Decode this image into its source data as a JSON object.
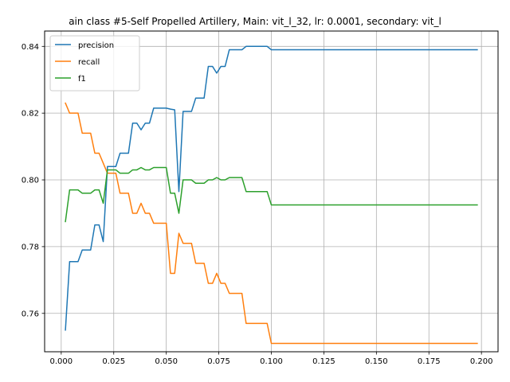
{
  "chart_data": {
    "type": "line",
    "title": "ain class #5-Self Propelled Artillery, Main: vit_l_32, lr: 0.0001, secondary: vit_l",
    "xlabel": "",
    "ylabel": "",
    "xlim": [
      -0.0079,
      0.2079
    ],
    "ylim": [
      0.7485,
      0.8446
    ],
    "grid": true,
    "legend_position": "top-left",
    "xticks": [
      0.0,
      0.025,
      0.05,
      0.075,
      0.1,
      0.125,
      0.15,
      0.175,
      0.2
    ],
    "xtick_labels": [
      "0.000",
      "0.025",
      "0.050",
      "0.075",
      "0.100",
      "0.125",
      "0.150",
      "0.175",
      "0.200"
    ],
    "yticks": [
      0.76,
      0.78,
      0.8,
      0.82,
      0.84
    ],
    "ytick_labels": [
      "0.76",
      "0.78",
      "0.80",
      "0.82",
      "0.84"
    ],
    "series": [
      {
        "name": "precision",
        "color": "#1f77b4",
        "points": [
          [
            0.002,
            0.755
          ],
          [
            0.004,
            0.7755
          ],
          [
            0.006,
            0.7755
          ],
          [
            0.008,
            0.7755
          ],
          [
            0.01,
            0.779
          ],
          [
            0.012,
            0.779
          ],
          [
            0.014,
            0.779
          ],
          [
            0.016,
            0.7865
          ],
          [
            0.018,
            0.7865
          ],
          [
            0.02,
            0.7815
          ],
          [
            0.022,
            0.804
          ],
          [
            0.024,
            0.804
          ],
          [
            0.026,
            0.804
          ],
          [
            0.028,
            0.808
          ],
          [
            0.03,
            0.808
          ],
          [
            0.032,
            0.808
          ],
          [
            0.034,
            0.817
          ],
          [
            0.036,
            0.817
          ],
          [
            0.038,
            0.815
          ],
          [
            0.04,
            0.817
          ],
          [
            0.042,
            0.817
          ],
          [
            0.044,
            0.8215
          ],
          [
            0.046,
            0.8215
          ],
          [
            0.048,
            0.8215
          ],
          [
            0.05,
            0.8215
          ],
          [
            0.052,
            0.8212
          ],
          [
            0.054,
            0.821
          ],
          [
            0.056,
            0.7965
          ],
          [
            0.058,
            0.8205
          ],
          [
            0.06,
            0.8205
          ],
          [
            0.062,
            0.8205
          ],
          [
            0.064,
            0.8245
          ],
          [
            0.066,
            0.8245
          ],
          [
            0.068,
            0.8245
          ],
          [
            0.07,
            0.834
          ],
          [
            0.072,
            0.834
          ],
          [
            0.074,
            0.832
          ],
          [
            0.076,
            0.834
          ],
          [
            0.078,
            0.834
          ],
          [
            0.08,
            0.839
          ],
          [
            0.082,
            0.839
          ],
          [
            0.084,
            0.839
          ],
          [
            0.086,
            0.839
          ],
          [
            0.088,
            0.84
          ],
          [
            0.09,
            0.84
          ],
          [
            0.092,
            0.84
          ],
          [
            0.094,
            0.84
          ],
          [
            0.096,
            0.84
          ],
          [
            0.098,
            0.84
          ],
          [
            0.1,
            0.839
          ],
          [
            0.198,
            0.839
          ]
        ]
      },
      {
        "name": "recall",
        "color": "#ff7f0e",
        "points": [
          [
            0.002,
            0.823
          ],
          [
            0.004,
            0.82
          ],
          [
            0.006,
            0.82
          ],
          [
            0.008,
            0.82
          ],
          [
            0.01,
            0.814
          ],
          [
            0.012,
            0.814
          ],
          [
            0.014,
            0.814
          ],
          [
            0.016,
            0.808
          ],
          [
            0.018,
            0.808
          ],
          [
            0.02,
            0.805
          ],
          [
            0.022,
            0.802
          ],
          [
            0.024,
            0.802
          ],
          [
            0.026,
            0.802
          ],
          [
            0.028,
            0.796
          ],
          [
            0.03,
            0.796
          ],
          [
            0.032,
            0.796
          ],
          [
            0.034,
            0.79
          ],
          [
            0.036,
            0.79
          ],
          [
            0.038,
            0.793
          ],
          [
            0.04,
            0.79
          ],
          [
            0.042,
            0.79
          ],
          [
            0.044,
            0.787
          ],
          [
            0.046,
            0.787
          ],
          [
            0.048,
            0.787
          ],
          [
            0.05,
            0.787
          ],
          [
            0.052,
            0.772
          ],
          [
            0.054,
            0.772
          ],
          [
            0.056,
            0.784
          ],
          [
            0.058,
            0.781
          ],
          [
            0.06,
            0.781
          ],
          [
            0.062,
            0.781
          ],
          [
            0.064,
            0.775
          ],
          [
            0.066,
            0.775
          ],
          [
            0.068,
            0.775
          ],
          [
            0.07,
            0.769
          ],
          [
            0.072,
            0.769
          ],
          [
            0.074,
            0.772
          ],
          [
            0.076,
            0.769
          ],
          [
            0.078,
            0.769
          ],
          [
            0.08,
            0.766
          ],
          [
            0.082,
            0.766
          ],
          [
            0.084,
            0.766
          ],
          [
            0.086,
            0.766
          ],
          [
            0.088,
            0.757
          ],
          [
            0.09,
            0.757
          ],
          [
            0.092,
            0.757
          ],
          [
            0.094,
            0.757
          ],
          [
            0.096,
            0.757
          ],
          [
            0.098,
            0.757
          ],
          [
            0.1,
            0.751
          ],
          [
            0.198,
            0.751
          ]
        ]
      },
      {
        "name": "f1",
        "color": "#2ca02c",
        "points": [
          [
            0.002,
            0.7875
          ],
          [
            0.004,
            0.797
          ],
          [
            0.006,
            0.797
          ],
          [
            0.008,
            0.797
          ],
          [
            0.01,
            0.796
          ],
          [
            0.012,
            0.796
          ],
          [
            0.014,
            0.796
          ],
          [
            0.016,
            0.797
          ],
          [
            0.018,
            0.797
          ],
          [
            0.02,
            0.793
          ],
          [
            0.022,
            0.803
          ],
          [
            0.024,
            0.803
          ],
          [
            0.026,
            0.803
          ],
          [
            0.028,
            0.802
          ],
          [
            0.03,
            0.802
          ],
          [
            0.032,
            0.802
          ],
          [
            0.034,
            0.803
          ],
          [
            0.036,
            0.803
          ],
          [
            0.038,
            0.8037
          ],
          [
            0.04,
            0.803
          ],
          [
            0.042,
            0.803
          ],
          [
            0.044,
            0.8037
          ],
          [
            0.046,
            0.8037
          ],
          [
            0.048,
            0.8037
          ],
          [
            0.05,
            0.8037
          ],
          [
            0.052,
            0.796
          ],
          [
            0.054,
            0.796
          ],
          [
            0.056,
            0.79
          ],
          [
            0.058,
            0.8
          ],
          [
            0.06,
            0.8
          ],
          [
            0.062,
            0.8
          ],
          [
            0.064,
            0.799
          ],
          [
            0.066,
            0.799
          ],
          [
            0.068,
            0.799
          ],
          [
            0.07,
            0.8
          ],
          [
            0.072,
            0.8
          ],
          [
            0.074,
            0.8007
          ],
          [
            0.076,
            0.8
          ],
          [
            0.078,
            0.8
          ],
          [
            0.08,
            0.8007
          ],
          [
            0.082,
            0.8007
          ],
          [
            0.084,
            0.8007
          ],
          [
            0.086,
            0.8007
          ],
          [
            0.088,
            0.7965
          ],
          [
            0.09,
            0.7965
          ],
          [
            0.092,
            0.7965
          ],
          [
            0.094,
            0.7965
          ],
          [
            0.096,
            0.7965
          ],
          [
            0.098,
            0.7965
          ],
          [
            0.1,
            0.7925
          ],
          [
            0.198,
            0.7925
          ]
        ]
      }
    ]
  }
}
